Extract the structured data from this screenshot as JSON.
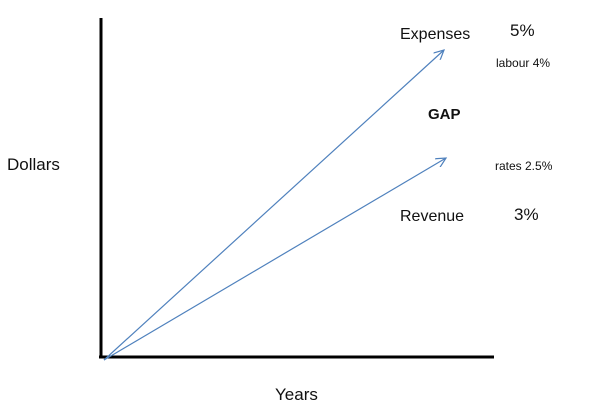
{
  "axes": {
    "y_label": "Dollars",
    "x_label": "Years"
  },
  "lines": [
    {
      "label": "Expenses",
      "rate": "5%",
      "note": "labour 4%"
    },
    {
      "label": "Revenue",
      "rate": "3%",
      "note": "rates 2.5%"
    }
  ],
  "gap_label": "GAP",
  "colors": {
    "axis": "#000000",
    "arrow": "#4f81bd",
    "text": "#111111"
  }
}
